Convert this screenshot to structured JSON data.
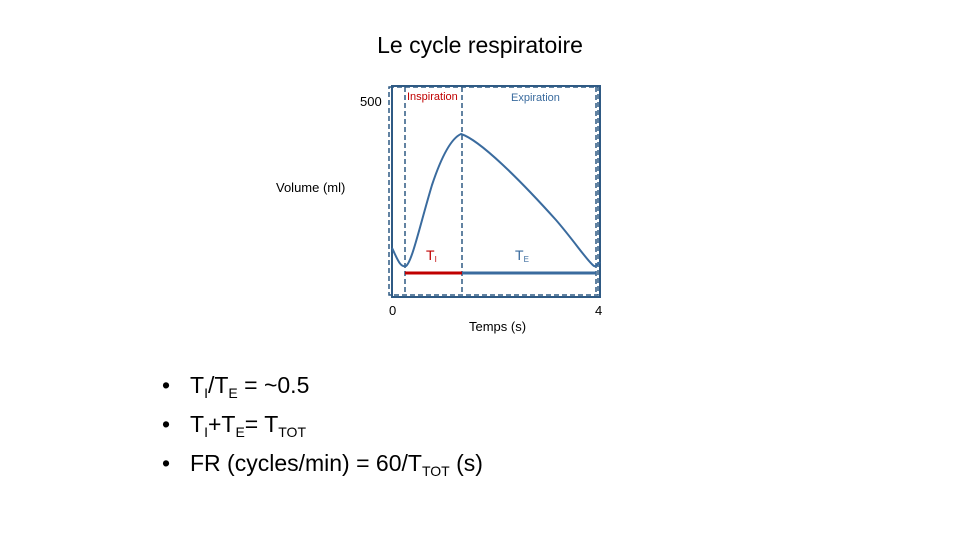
{
  "title": "Le cycle respiratoire",
  "diagram": {
    "y_tick_top": "500",
    "y_label": "Volume (ml)",
    "x_tick_start": "0",
    "x_tick_end": "4",
    "x_label": "Temps (s)",
    "phase_inspiration": "Inspiration",
    "phase_expiration": "Expiration",
    "ti_letter": "T",
    "ti_sub": "I",
    "te_letter": "T",
    "te_sub": "E",
    "colors": {
      "frame": "#2f5a84",
      "curve": "#3a6b9e",
      "inspiration": "#c00000",
      "expiration": "#3a6b9e"
    }
  },
  "bullets": [
    {
      "parts": [
        "T",
        "I",
        "/T",
        "E",
        " = ~0.5"
      ]
    },
    {
      "parts": [
        "T",
        "I",
        "+T",
        "E",
        "= T",
        "TOT"
      ]
    },
    {
      "parts": [
        "FR (cycles/min) = 60/T",
        "TOT",
        " (s)"
      ]
    }
  ],
  "bullet_char": "•"
}
